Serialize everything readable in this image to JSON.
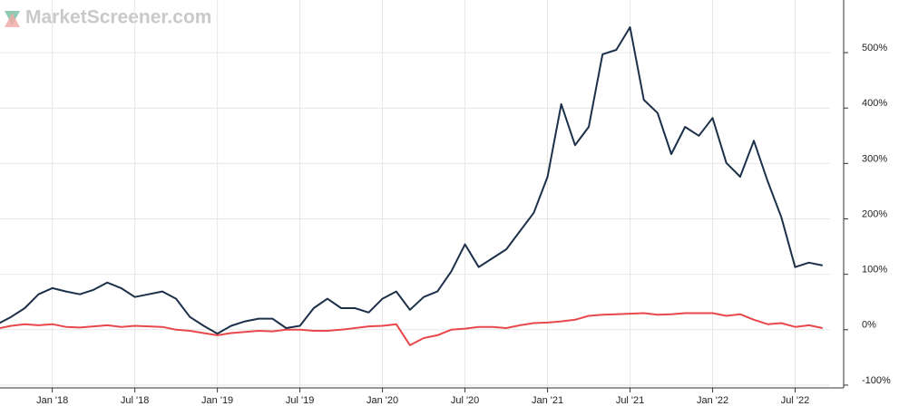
{
  "chart_data": {
    "type": "line",
    "watermark": "MarketScreener.com",
    "x": [
      "2017-09",
      "2017-10",
      "2017-11",
      "2017-12",
      "2018-01",
      "2018-02",
      "2018-03",
      "2018-04",
      "2018-05",
      "2018-06",
      "2018-07",
      "2018-08",
      "2018-09",
      "2018-10",
      "2018-11",
      "2018-12",
      "2019-01",
      "2019-02",
      "2019-03",
      "2019-04",
      "2019-05",
      "2019-06",
      "2019-07",
      "2019-08",
      "2019-09",
      "2019-10",
      "2019-11",
      "2019-12",
      "2020-01",
      "2020-02",
      "2020-03",
      "2020-04",
      "2020-05",
      "2020-06",
      "2020-07",
      "2020-08",
      "2020-09",
      "2020-10",
      "2020-11",
      "2020-12",
      "2021-01",
      "2021-02",
      "2021-03",
      "2021-04",
      "2021-05",
      "2021-06",
      "2021-07",
      "2021-08",
      "2021-09",
      "2021-10",
      "2021-11",
      "2021-12",
      "2022-01",
      "2022-02",
      "2022-03",
      "2022-04",
      "2022-05",
      "2022-06",
      "2022-07",
      "2022-08",
      "2022-09"
    ],
    "series": [
      {
        "color": "#1c3049",
        "values": [
          10,
          23,
          39,
          64,
          75,
          69,
          64,
          72,
          85,
          75,
          59,
          64,
          69,
          56,
          23,
          7,
          -7,
          7,
          15,
          20,
          20,
          3,
          7,
          39,
          56,
          39,
          39,
          31,
          56,
          69,
          36,
          59,
          69,
          105,
          154,
          113,
          129,
          145,
          178,
          211,
          276,
          407,
          333,
          366,
          497,
          505,
          546,
          415,
          391,
          317,
          366,
          350,
          382,
          301,
          276,
          341,
          268,
          203,
          113,
          121,
          116
        ]
      },
      {
        "color": "#e8484b",
        "values": [
          2,
          7,
          10,
          8,
          10,
          5,
          4,
          6,
          8,
          5,
          7,
          6,
          5,
          0,
          -2,
          -6,
          -10,
          -6,
          -4,
          -2,
          -3,
          0,
          0,
          -2,
          -2,
          0,
          3,
          6,
          7,
          10,
          -28,
          -15,
          -10,
          0,
          2,
          5,
          5,
          3,
          8,
          12,
          13,
          15,
          18,
          25,
          27,
          28,
          29,
          30,
          27,
          28,
          30,
          30,
          30,
          25,
          28,
          18,
          10,
          12,
          5,
          8,
          3
        ]
      }
    ],
    "xlim": [
      "2017-09",
      "2022-10"
    ],
    "xticks": [
      {
        "value": "2018-01",
        "label": "Jan '18"
      },
      {
        "value": "2018-07",
        "label": "Jul '18"
      },
      {
        "value": "2019-01",
        "label": "Jan '19"
      },
      {
        "value": "2019-07",
        "label": "Jul '19"
      },
      {
        "value": "2020-01",
        "label": "Jan '20"
      },
      {
        "value": "2020-07",
        "label": "Jul '20"
      },
      {
        "value": "2021-01",
        "label": "Jan '21"
      },
      {
        "value": "2021-07",
        "label": "Jul '21"
      },
      {
        "value": "2022-01",
        "label": "Jan '22"
      },
      {
        "value": "2022-07",
        "label": "Jul '22"
      }
    ],
    "ylim": [
      -105,
      595
    ],
    "yticks": [
      {
        "value": -100,
        "label": "-100%"
      },
      {
        "value": 0,
        "label": "0%"
      },
      {
        "value": 100,
        "label": "100%"
      },
      {
        "value": 200,
        "label": "200%"
      },
      {
        "value": 300,
        "label": "300%"
      },
      {
        "value": 400,
        "label": "400%"
      },
      {
        "value": 500,
        "label": "500%"
      }
    ],
    "grid": true
  }
}
